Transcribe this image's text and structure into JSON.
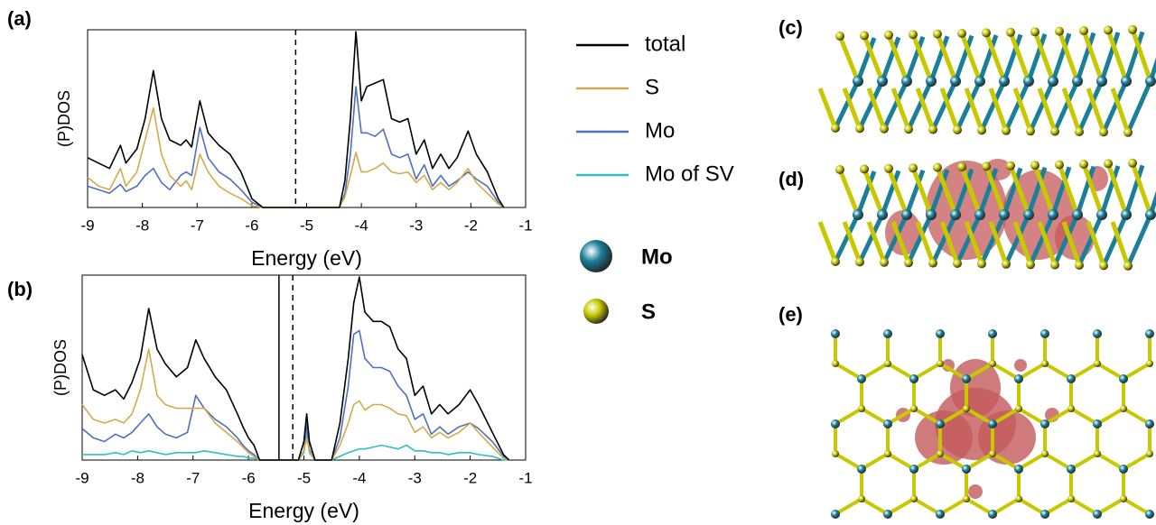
{
  "chart_data": [
    {
      "type": "line",
      "panel_label": "(a)",
      "xlabel": "Energy (eV)",
      "ylabel": "(P)DOS",
      "xlim": [
        -9,
        -1
      ],
      "xticks": [
        -9,
        -8,
        -7,
        -6,
        -5,
        -4,
        -3,
        -2,
        -1
      ],
      "ylim": [
        0,
        1
      ],
      "vlines": [
        {
          "x": -5.2,
          "style": "dashed"
        }
      ],
      "x": [
        -9,
        -8.8,
        -8.6,
        -8.4,
        -8.3,
        -8.1,
        -7.95,
        -7.8,
        -7.65,
        -7.5,
        -7.3,
        -7.2,
        -7.1,
        -6.95,
        -6.8,
        -6.6,
        -6.4,
        -6.2,
        -6.0,
        -5.8,
        -4.4,
        -4.3,
        -4.2,
        -4.1,
        -4.0,
        -3.9,
        -3.75,
        -3.6,
        -3.45,
        -3.3,
        -3.15,
        -3.0,
        -2.85,
        -2.7,
        -2.55,
        -2.4,
        -2.25,
        -2.05,
        -1.9,
        -1.7,
        -1.5,
        -1.4
      ],
      "series": [
        {
          "name": "total",
          "color": "#000000",
          "values": [
            0.28,
            0.25,
            0.22,
            0.35,
            0.25,
            0.33,
            0.5,
            0.77,
            0.5,
            0.38,
            0.35,
            0.38,
            0.34,
            0.6,
            0.42,
            0.35,
            0.3,
            0.2,
            0.05,
            0,
            0,
            0.15,
            0.5,
            0.99,
            0.6,
            0.68,
            0.7,
            0.72,
            0.5,
            0.48,
            0.5,
            0.3,
            0.38,
            0.22,
            0.3,
            0.22,
            0.28,
            0.43,
            0.3,
            0.2,
            0.05,
            0
          ]
        },
        {
          "name": "S",
          "color": "#d4aa4a",
          "values": [
            0.17,
            0.12,
            0.1,
            0.22,
            0.12,
            0.2,
            0.38,
            0.56,
            0.3,
            0.18,
            0.12,
            0.15,
            0.1,
            0.3,
            0.2,
            0.12,
            0.08,
            0.05,
            0.01,
            0,
            0,
            0.06,
            0.18,
            0.31,
            0.2,
            0.2,
            0.22,
            0.25,
            0.2,
            0.19,
            0.2,
            0.14,
            0.18,
            0.1,
            0.14,
            0.1,
            0.14,
            0.22,
            0.14,
            0.08,
            0.02,
            0
          ]
        },
        {
          "name": "Mo",
          "color": "#4f6fbf",
          "values": [
            0.12,
            0.1,
            0.08,
            0.13,
            0.09,
            0.12,
            0.18,
            0.22,
            0.14,
            0.1,
            0.18,
            0.2,
            0.18,
            0.45,
            0.28,
            0.2,
            0.16,
            0.1,
            0.03,
            0,
            0,
            0.08,
            0.3,
            0.68,
            0.42,
            0.42,
            0.4,
            0.44,
            0.3,
            0.28,
            0.3,
            0.16,
            0.24,
            0.12,
            0.18,
            0.12,
            0.15,
            0.2,
            0.16,
            0.12,
            0.03,
            0
          ]
        }
      ]
    },
    {
      "type": "line",
      "panel_label": "(b)",
      "xlabel": "Energy (eV)",
      "ylabel": "(P)DOS",
      "xlim": [
        -9,
        -1
      ],
      "xticks": [
        -9,
        -8,
        -7,
        -6,
        -5,
        -4,
        -3,
        -2,
        -1
      ],
      "ylim": [
        0,
        1
      ],
      "vlines": [
        {
          "x": -5.45,
          "style": "solid"
        },
        {
          "x": -5.2,
          "style": "dashed"
        }
      ],
      "x": [
        -9,
        -8.8,
        -8.6,
        -8.4,
        -8.25,
        -8.1,
        -7.95,
        -7.8,
        -7.65,
        -7.5,
        -7.3,
        -7.1,
        -6.95,
        -6.8,
        -6.6,
        -6.4,
        -6.2,
        -6.1,
        -6.0,
        -5.9,
        -5.8,
        -5.1,
        -5.0,
        -4.95,
        -4.9,
        -4.8,
        -4.5,
        -4.35,
        -4.2,
        -4.1,
        -4.0,
        -3.9,
        -3.75,
        -3.6,
        -3.45,
        -3.3,
        -3.15,
        -3.0,
        -2.85,
        -2.7,
        -2.55,
        -2.4,
        -2.2,
        -2.0,
        -1.85,
        -1.6,
        -1.4,
        -1.3
      ],
      "series": [
        {
          "name": "total",
          "color": "#000000",
          "values": [
            0.57,
            0.38,
            0.35,
            0.38,
            0.33,
            0.42,
            0.55,
            0.82,
            0.6,
            0.52,
            0.45,
            0.5,
            0.65,
            0.55,
            0.45,
            0.38,
            0.25,
            0.18,
            0.12,
            0.08,
            0,
            0,
            0.1,
            0.25,
            0.1,
            0,
            0,
            0.2,
            0.55,
            0.85,
            0.99,
            0.8,
            0.75,
            0.75,
            0.72,
            0.6,
            0.55,
            0.35,
            0.4,
            0.25,
            0.3,
            0.25,
            0.3,
            0.38,
            0.3,
            0.15,
            0.03,
            0
          ]
        },
        {
          "name": "S",
          "color": "#d4aa4a",
          "values": [
            0.3,
            0.22,
            0.2,
            0.22,
            0.2,
            0.25,
            0.38,
            0.6,
            0.35,
            0.3,
            0.28,
            0.28,
            0.28,
            0.28,
            0.2,
            0.15,
            0.1,
            0.07,
            0.04,
            0.02,
            0,
            0,
            0.05,
            0.12,
            0.05,
            0,
            0,
            0.08,
            0.2,
            0.3,
            0.32,
            0.27,
            0.3,
            0.3,
            0.28,
            0.25,
            0.24,
            0.15,
            0.18,
            0.12,
            0.15,
            0.12,
            0.15,
            0.2,
            0.15,
            0.07,
            0.01,
            0
          ]
        },
        {
          "name": "Mo",
          "color": "#4f6fbf",
          "values": [
            0.17,
            0.12,
            0.1,
            0.14,
            0.12,
            0.15,
            0.2,
            0.25,
            0.18,
            0.14,
            0.12,
            0.15,
            0.35,
            0.28,
            0.22,
            0.18,
            0.12,
            0.08,
            0.05,
            0.03,
            0,
            0,
            0.05,
            0.2,
            0.06,
            0,
            0,
            0.12,
            0.4,
            0.68,
            0.7,
            0.55,
            0.5,
            0.5,
            0.48,
            0.4,
            0.35,
            0.22,
            0.25,
            0.14,
            0.18,
            0.14,
            0.18,
            0.2,
            0.17,
            0.1,
            0.02,
            0
          ]
        },
        {
          "name": "Mo of SV",
          "color": "#30c0c0",
          "values": [
            0.03,
            0.03,
            0.03,
            0.04,
            0.03,
            0.05,
            0.04,
            0.05,
            0.04,
            0.03,
            0.04,
            0.04,
            0.04,
            0.05,
            0.04,
            0.03,
            0.02,
            0.02,
            0.01,
            0.01,
            0,
            0,
            0.04,
            0.15,
            0.04,
            0,
            0,
            0.02,
            0.04,
            0.05,
            0.06,
            0.06,
            0.07,
            0.08,
            0.07,
            0.06,
            0.08,
            0.05,
            0.05,
            0.04,
            0.04,
            0.03,
            0.04,
            0.04,
            0.03,
            0.02,
            0,
            0
          ]
        }
      ]
    }
  ],
  "atom_legend": [
    {
      "name": "Mo",
      "color": "#1a7f99"
    },
    {
      "name": "S",
      "color": "#c8c800"
    }
  ],
  "structure_panels": [
    "(c)",
    "(d)",
    "(e)"
  ]
}
